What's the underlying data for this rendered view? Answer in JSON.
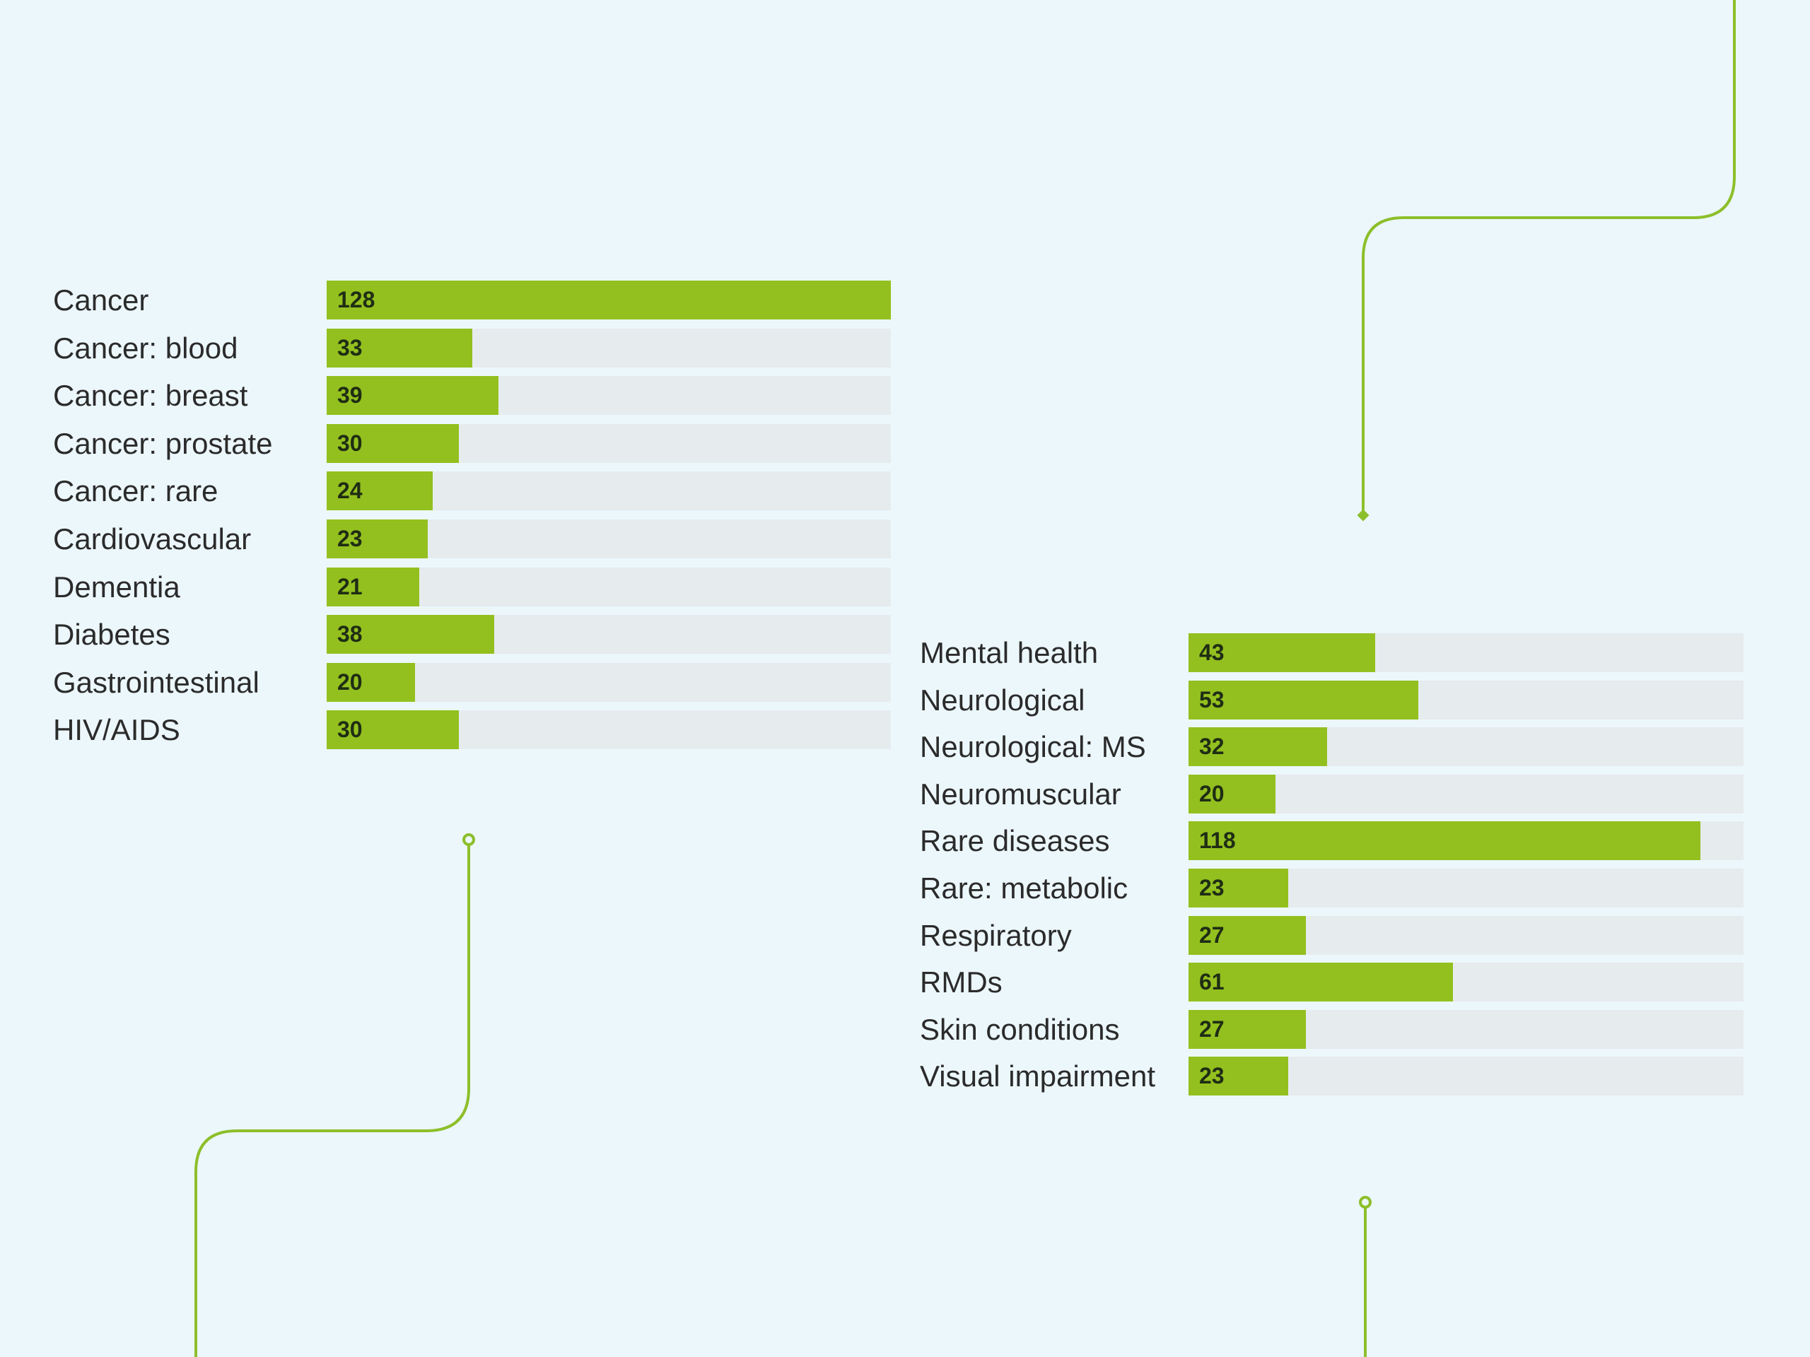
{
  "colors": {
    "background": "#ecf7fc",
    "bar_fill": "#93c01f",
    "bar_track": "#e6ebee",
    "connector_line": "#8dbf2a",
    "label_text": "#2b2b2b",
    "value_text": "#1f2d14"
  },
  "chart_data": [
    {
      "type": "bar",
      "orientation": "horizontal",
      "grid": false,
      "title": "",
      "xlim": [
        0,
        128
      ],
      "categories": [
        "Cancer",
        "Cancer: blood",
        "Cancer: breast",
        "Cancer: prostate",
        "Cancer: rare",
        "Cardiovascular",
        "Dementia",
        "Diabetes",
        "Gastrointestinal",
        "HIV/AIDS"
      ],
      "values": [
        128,
        33,
        39,
        30,
        24,
        23,
        21,
        38,
        20,
        30
      ],
      "value_labels": [
        "128",
        "33",
        "39",
        "30",
        "24",
        "23",
        "21",
        "38",
        "20",
        "30"
      ]
    },
    {
      "type": "bar",
      "orientation": "horizontal",
      "grid": false,
      "title": "",
      "xlim": [
        0,
        128
      ],
      "categories": [
        "Mental health",
        "Neurological",
        "Neurological: MS",
        "Neuromuscular",
        "Rare diseases",
        "Rare: metabolic",
        "Respiratory",
        "RMDs",
        "Skin conditions",
        "Visual impairment"
      ],
      "values": [
        43,
        53,
        32,
        20,
        118,
        23,
        27,
        61,
        27,
        23
      ],
      "value_labels": [
        "43",
        "53",
        "32",
        "20",
        "118",
        "23",
        "27",
        "61",
        "27",
        "23"
      ]
    }
  ]
}
